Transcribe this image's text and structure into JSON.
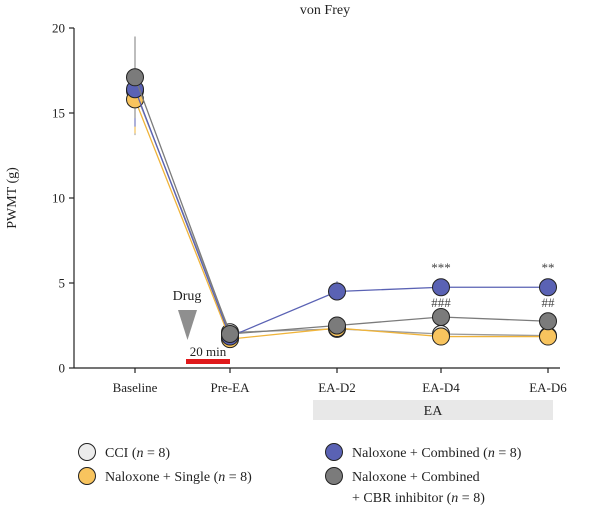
{
  "chart_data": {
    "type": "line",
    "title": "von Frey",
    "ylabel": "PWMT (g)",
    "xlabel": "",
    "categories": [
      "Baseline",
      "Pre-EA",
      "EA-D2",
      "EA-D4",
      "EA-D6"
    ],
    "ylim": [
      0,
      20
    ],
    "yticks": [
      0,
      5,
      10,
      15,
      20
    ],
    "grid": false,
    "legend_position": "bottom",
    "series": [
      {
        "name": "CCI (n = 8)",
        "legend_parts": [
          {
            "t": "CCI (",
            "i": false
          },
          {
            "t": "n",
            "i": true
          },
          {
            "t": " = 8)",
            "i": false
          }
        ],
        "values": [
          16.3,
          2.1,
          2.3,
          2.0,
          1.9
        ],
        "fill": "#ececec",
        "line": "#9a9a9a"
      },
      {
        "name": "Naloxone + Single (n = 8)",
        "legend_parts": [
          {
            "t": "Naloxone + Single (",
            "i": false
          },
          {
            "t": "n",
            "i": true
          },
          {
            "t": " = 8)",
            "i": false
          }
        ],
        "values": [
          15.8,
          1.7,
          2.35,
          1.85,
          1.85
        ],
        "fill": "#f8c45e",
        "line": "#f0b43a"
      },
      {
        "name": "Naloxone + Combined (n = 8)",
        "legend_parts": [
          {
            "t": "Naloxone + Combined (",
            "i": false
          },
          {
            "t": "n",
            "i": true
          },
          {
            "t": " = 8)",
            "i": false
          }
        ],
        "values": [
          16.4,
          1.85,
          4.5,
          4.75,
          4.75
        ],
        "fill": "#5a62b4",
        "line": "#5a62b4"
      },
      {
        "name": "Naloxone + Combined + CBR inhibitor (n = 8)",
        "legend_parts": [
          {
            "t": "Naloxone + Combined",
            "i": false
          }
        ],
        "legend_parts_line2": [
          {
            "t": "+ CBR inhibitor (",
            "i": false
          },
          {
            "t": "n",
            "i": true
          },
          {
            "t": " = 8)",
            "i": false
          }
        ],
        "values": [
          17.1,
          2.0,
          2.5,
          3.0,
          2.75
        ],
        "fill": "#7b7b7b",
        "line": "#7b7b7b"
      }
    ],
    "annotations": {
      "drug_label": "Drug",
      "duration_label": "20 min",
      "ea_band_label": "EA",
      "significance": [
        {
          "category": "EA-D4",
          "upper": "***",
          "lower": "###"
        },
        {
          "category": "EA-D6",
          "upper": "**",
          "lower": "##"
        }
      ]
    }
  }
}
